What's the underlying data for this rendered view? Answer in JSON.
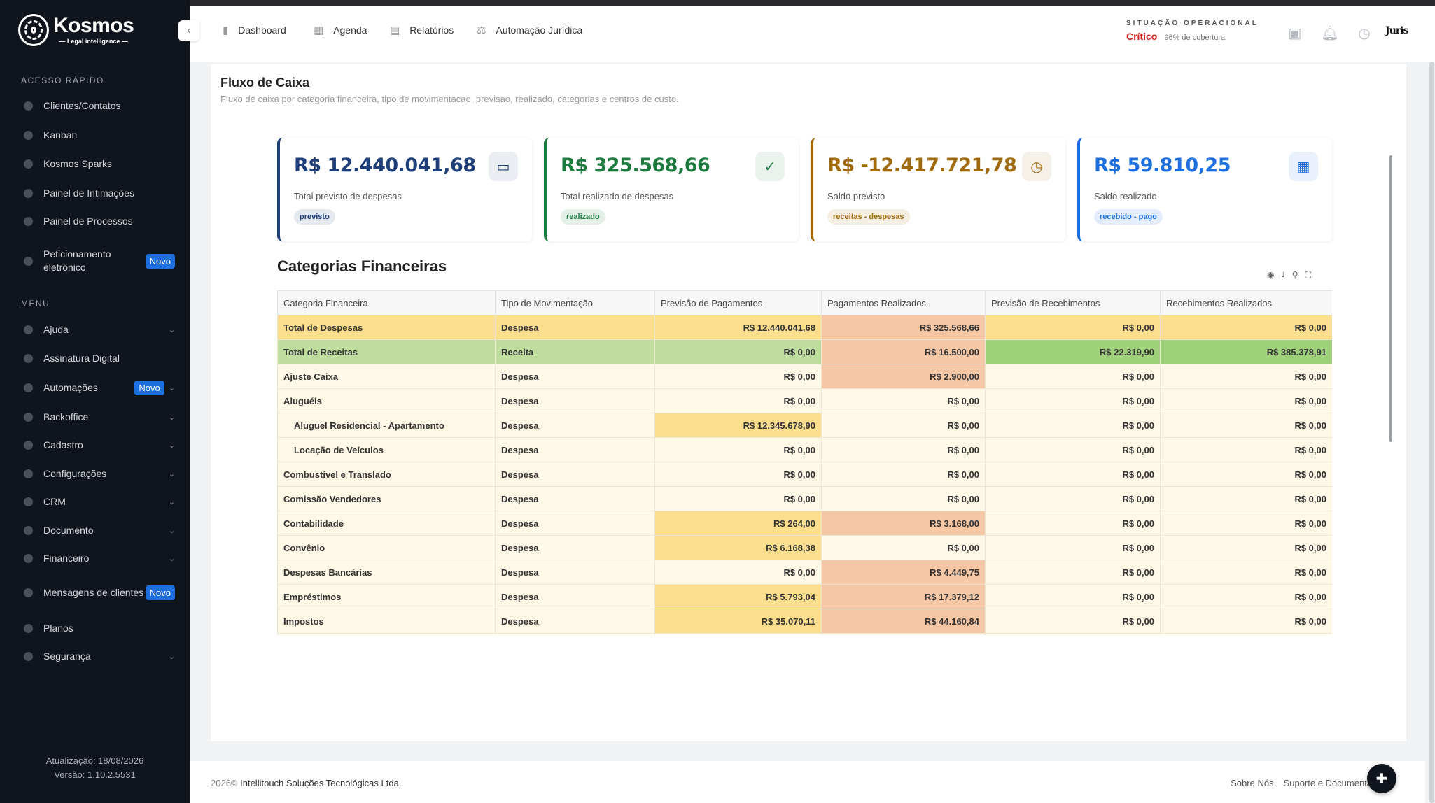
{
  "sidebar": {
    "logo_name": "Kosmos",
    "logo_sub": "— Legal intelligence —",
    "quick_title": "ACESSO RÁPIDO",
    "quick": [
      {
        "label": "Clientes/Contatos",
        "icon": "users-icon"
      },
      {
        "label": "Kanban",
        "icon": "kanban-icon"
      },
      {
        "label": "Kosmos Sparks",
        "icon": "sparks-icon"
      },
      {
        "label": "Painel de Intimações",
        "icon": "inbox-icon"
      },
      {
        "label": "Painel de Processos",
        "icon": "gavel-icon"
      },
      {
        "label": "Peticionamento eletrônico",
        "icon": "edit-icon",
        "badge": "Novo"
      }
    ],
    "menu_title": "MENU",
    "menu": [
      {
        "label": "Ajuda",
        "icon": "help-icon",
        "chevron": true
      },
      {
        "label": "Assinatura Digital",
        "icon": "pen-icon",
        "chevron": false
      },
      {
        "label": "Automações",
        "icon": "automation-icon",
        "chevron": true,
        "badge": "Novo"
      },
      {
        "label": "Backoffice",
        "icon": "backoffice-icon",
        "chevron": true
      },
      {
        "label": "Cadastro",
        "icon": "cadastro-icon",
        "chevron": true
      },
      {
        "label": "Configurações",
        "icon": "settings-icon",
        "chevron": true
      },
      {
        "label": "CRM",
        "icon": "crm-icon",
        "chevron": true
      },
      {
        "label": "Documento",
        "icon": "document-icon",
        "chevron": true
      },
      {
        "label": "Financeiro",
        "icon": "dollar-icon",
        "chevron": true
      },
      {
        "label": "Mensagens de clientes",
        "icon": "message-icon",
        "chevron": false,
        "badge": "Novo"
      },
      {
        "label": "Planos",
        "icon": "plans-icon",
        "chevron": false
      },
      {
        "label": "Segurança",
        "icon": "shield-icon",
        "chevron": true
      }
    ],
    "update": "Atualização: 18/08/2026",
    "version": "Versão: 1.10.2.5531"
  },
  "topbar": {
    "nav": [
      {
        "label": "Dashboard",
        "icon": "chart-icon"
      },
      {
        "label": "Agenda",
        "icon": "calendar-icon"
      },
      {
        "label": "Relatórios",
        "icon": "report-icon"
      },
      {
        "label": "Automação Jurídica",
        "icon": "scale-icon"
      }
    ],
    "situation_title": "SITUAÇÃO OPERACIONAL",
    "situation_status": "Crítico",
    "situation_coverage": "96% de cobertura",
    "user_brand": "Juris"
  },
  "page": {
    "title": "Fluxo de Caixa",
    "subtitle": "Fluxo de caixa por categoria financeira, tipo de movimentacao, previsao, realizado, categorias e centros de custo."
  },
  "kpis": [
    {
      "value": "R$ 12.440.041,68",
      "label": "Total previsto de despesas",
      "chip": "previsto",
      "color": "#1e3f7a",
      "icon": "cash-icon"
    },
    {
      "value": "R$ 325.568,66",
      "label": "Total realizado de despesas",
      "chip": "realizado",
      "color": "#1d7a3e",
      "icon": "check-circle-icon"
    },
    {
      "value": "R$ -12.417.721,78",
      "label": "Saldo previsto",
      "chip": "receitas - despesas",
      "color": "#a06a0e",
      "icon": "clock-icon"
    },
    {
      "value": "R$ 59.810,25",
      "label": "Saldo realizado",
      "chip": "recebido - pago",
      "color": "#1d6fe0",
      "icon": "calculator-icon"
    }
  ],
  "table": {
    "title": "Categorias Financeiras",
    "headers": [
      "Categoria Financeira",
      "Tipo de Movimentação",
      "Previsão de Pagamentos",
      "Pagamentos Realizados",
      "Previsão de Recebimentos",
      "Recebimentos Realizados"
    ],
    "rows": [
      {
        "cat": "Total de Despesas",
        "tipo": "Despesa",
        "prev_pag": "R$ 12.440.041,68",
        "pag_real": "R$ 325.568,66",
        "prev_rec": "R$ 0,00",
        "rec_real": "R$ 0,00",
        "kind": "desp"
      },
      {
        "cat": "Total de Receitas",
        "tipo": "Receita",
        "prev_pag": "R$ 0,00",
        "pag_real": "R$ 16.500,00",
        "prev_rec": "R$ 22.319,90",
        "rec_real": "R$ 385.378,91",
        "kind": "rec"
      },
      {
        "cat": "Ajuste Caixa",
        "tipo": "Despesa",
        "prev_pag": "R$ 0,00",
        "pag_real": "R$ 2.900,00",
        "prev_rec": "R$ 0,00",
        "rec_real": "R$ 0,00"
      },
      {
        "cat": "Aluguéis",
        "tipo": "Despesa",
        "prev_pag": "R$ 0,00",
        "pag_real": "R$ 0,00",
        "prev_rec": "R$ 0,00",
        "rec_real": "R$ 0,00"
      },
      {
        "cat": "Aluguel Residencial - Apartamento",
        "tipo": "Despesa",
        "prev_pag": "R$ 12.345.678,90",
        "pag_real": "R$ 0,00",
        "prev_rec": "R$ 0,00",
        "rec_real": "R$ 0,00",
        "indent": true
      },
      {
        "cat": "Locação de Veículos",
        "tipo": "Despesa",
        "prev_pag": "R$ 0,00",
        "pag_real": "R$ 0,00",
        "prev_rec": "R$ 0,00",
        "rec_real": "R$ 0,00",
        "indent": true
      },
      {
        "cat": "Combustível e Translado",
        "tipo": "Despesa",
        "prev_pag": "R$ 0,00",
        "pag_real": "R$ 0,00",
        "prev_rec": "R$ 0,00",
        "rec_real": "R$ 0,00"
      },
      {
        "cat": "Comissão Vendedores",
        "tipo": "Despesa",
        "prev_pag": "R$ 0,00",
        "pag_real": "R$ 0,00",
        "prev_rec": "R$ 0,00",
        "rec_real": "R$ 0,00"
      },
      {
        "cat": "Contabilidade",
        "tipo": "Despesa",
        "prev_pag": "R$ 264,00",
        "pag_real": "R$ 3.168,00",
        "prev_rec": "R$ 0,00",
        "rec_real": "R$ 0,00"
      },
      {
        "cat": "Convênio",
        "tipo": "Despesa",
        "prev_pag": "R$ 6.168,38",
        "pag_real": "R$ 0,00",
        "prev_rec": "R$ 0,00",
        "rec_real": "R$ 0,00"
      },
      {
        "cat": "Despesas Bancárias",
        "tipo": "Despesa",
        "prev_pag": "R$ 0,00",
        "pag_real": "R$ 4.449,75",
        "prev_rec": "R$ 0,00",
        "rec_real": "R$ 0,00"
      },
      {
        "cat": "Empréstimos",
        "tipo": "Despesa",
        "prev_pag": "R$ 5.793,04",
        "pag_real": "R$ 17.379,12",
        "prev_rec": "R$ 0,00",
        "rec_real": "R$ 0,00"
      },
      {
        "cat": "Impostos",
        "tipo": "Despesa",
        "prev_pag": "R$ 35.070,11",
        "pag_real": "R$ 44.160,84",
        "prev_rec": "R$ 0,00",
        "rec_real": "R$ 0,00"
      },
      {
        "cat": "",
        "tipo": "",
        "prev_pag": "",
        "pag_real": "",
        "prev_rec": "",
        "rec_real": ""
      }
    ]
  },
  "footer": {
    "year": "2026©",
    "company": "Intellitouch Soluções Tecnológicas Ltda.",
    "links": [
      "Sobre Nós",
      "Suporte e Documentação"
    ]
  }
}
